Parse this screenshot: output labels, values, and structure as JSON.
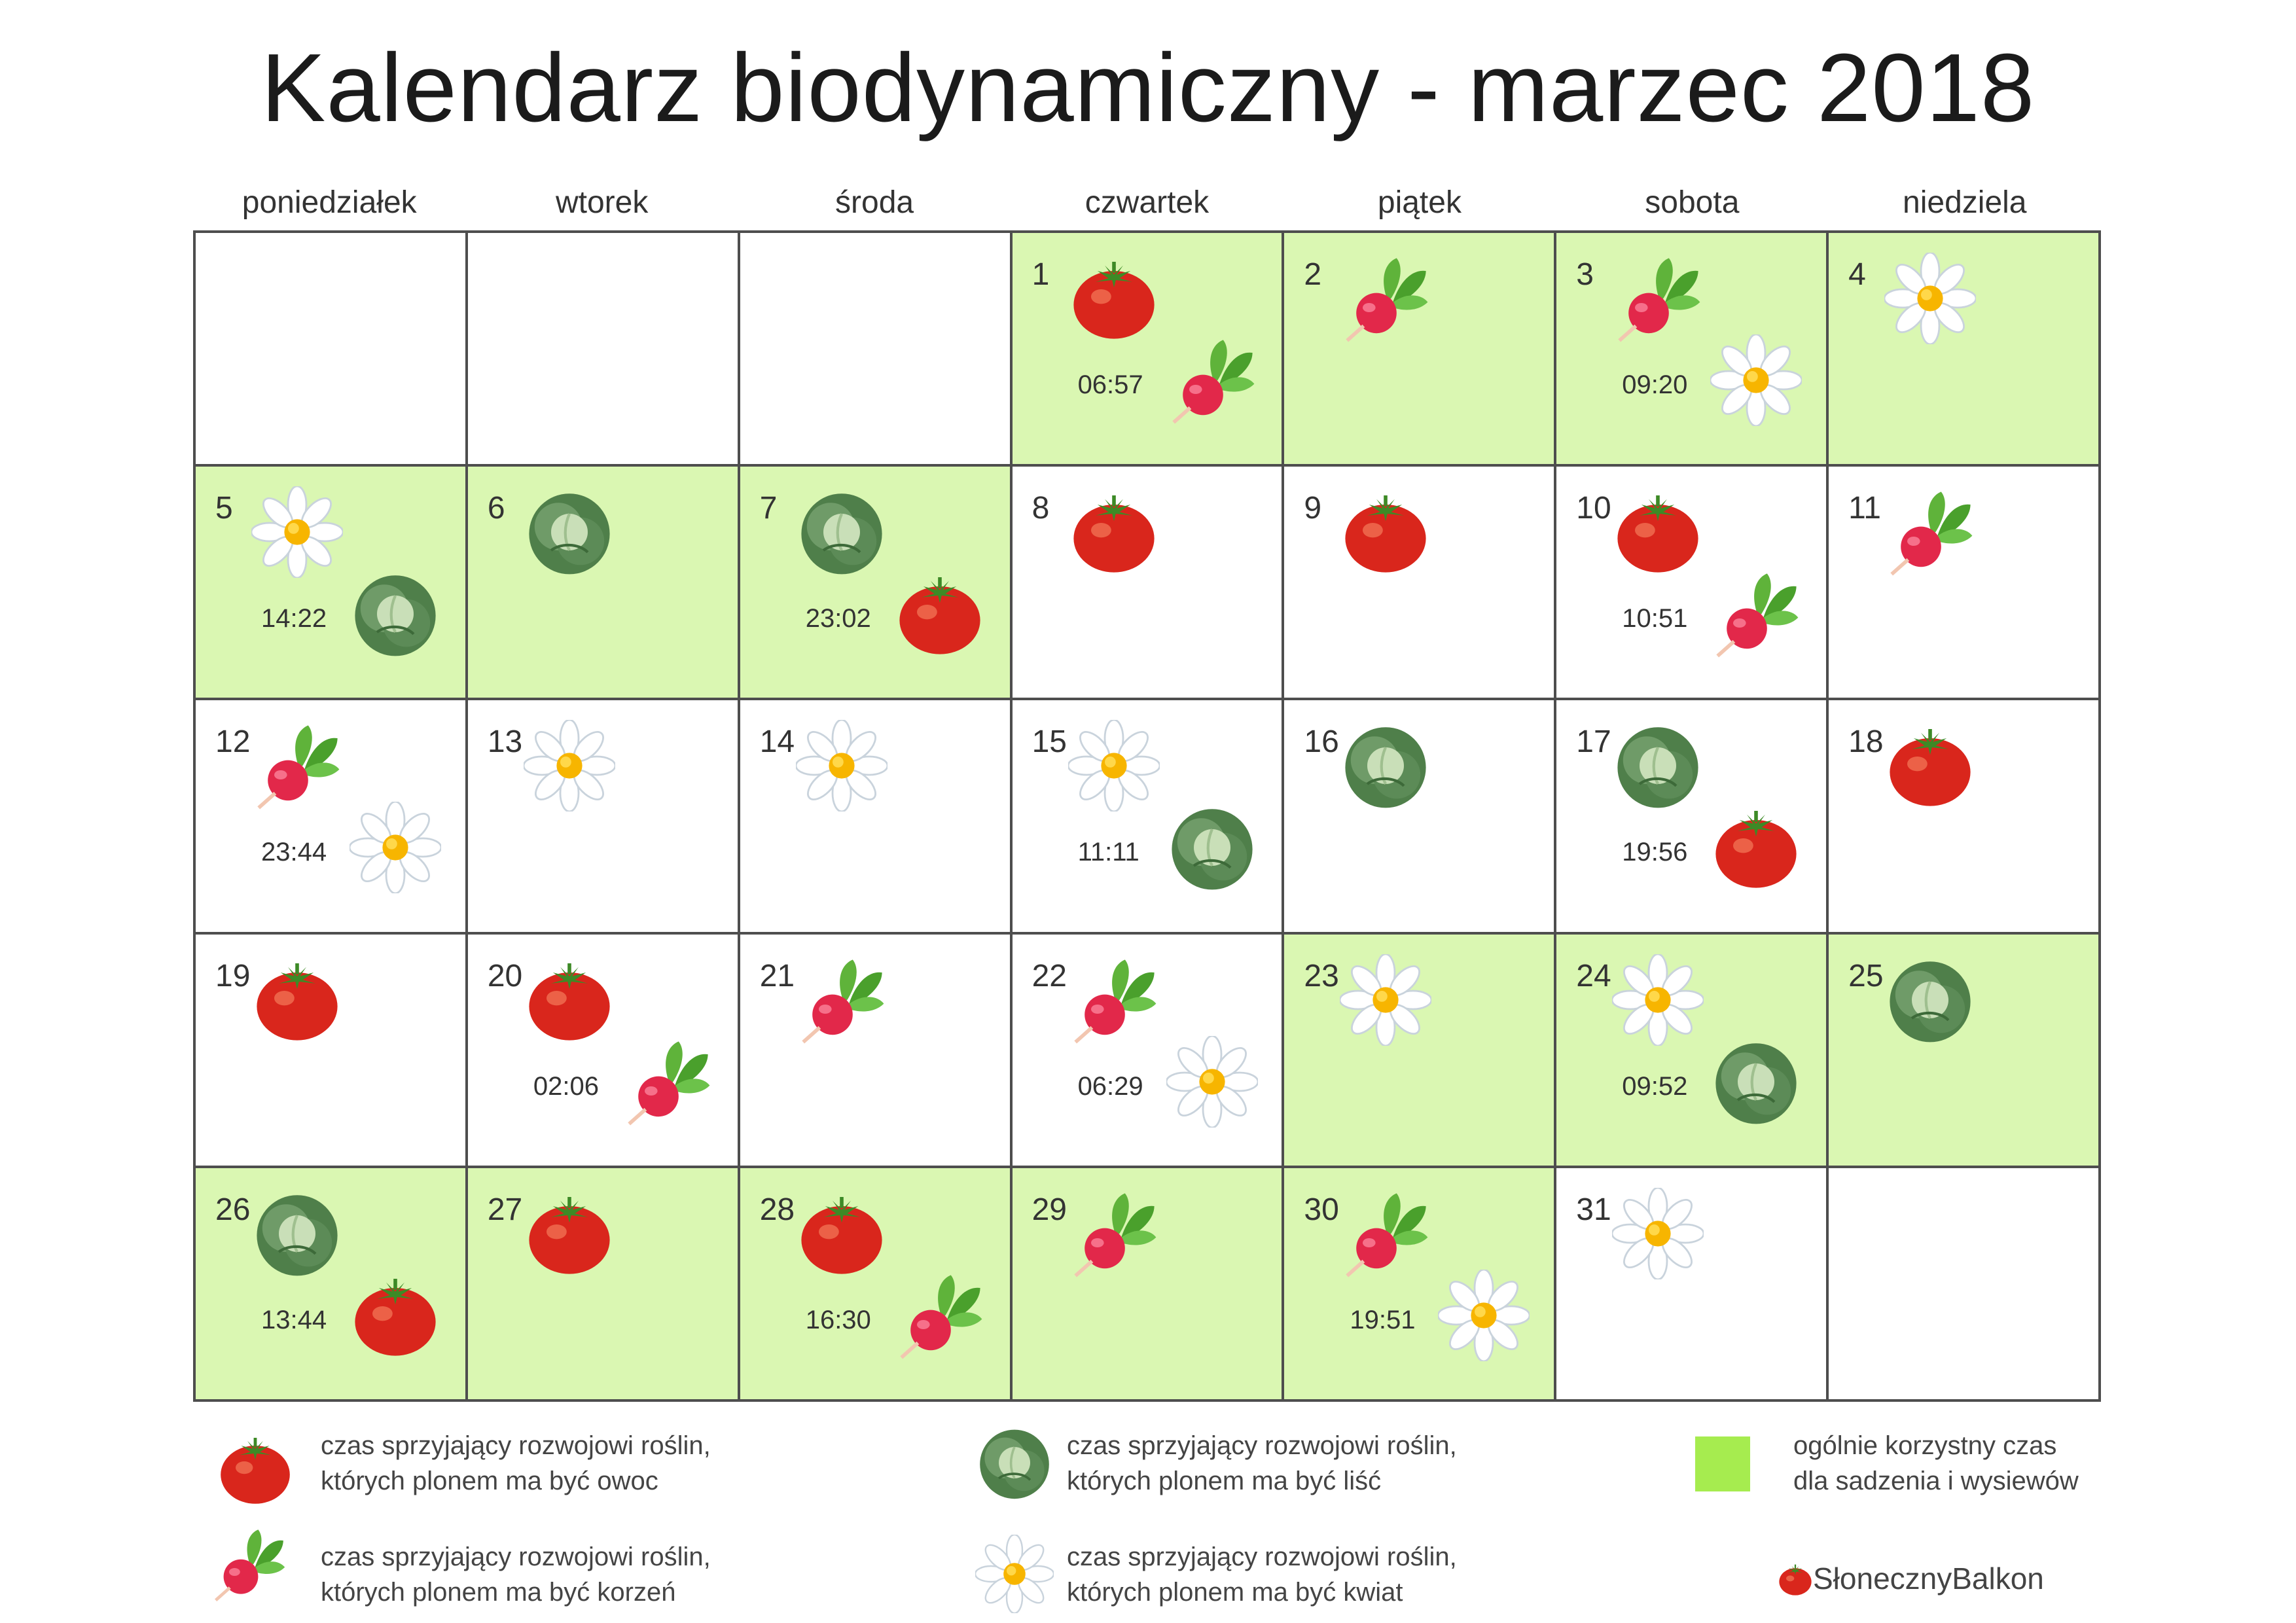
{
  "title": "Kalendarz biodynamiczny - marzec 2018",
  "weekdays": [
    "poniedziałek",
    "wtorek",
    "środa",
    "czwartek",
    "piątek",
    "sobota",
    "niedziela"
  ],
  "colors": {
    "favorable": "#daf7b2",
    "legend_swatch": "#a6ec4f",
    "border": "#4e4e4e"
  },
  "cells": [
    {
      "day": "",
      "green": false,
      "icons": []
    },
    {
      "day": "",
      "green": false,
      "icons": []
    },
    {
      "day": "",
      "green": false,
      "icons": []
    },
    {
      "day": "1",
      "green": true,
      "icons": [
        "tomato-icon",
        "radish-icon"
      ],
      "time": "06:57"
    },
    {
      "day": "2",
      "green": true,
      "icons": [
        "radish-icon"
      ]
    },
    {
      "day": "3",
      "green": true,
      "icons": [
        "radish-icon",
        "daisy-icon"
      ],
      "time": "09:20"
    },
    {
      "day": "4",
      "green": true,
      "icons": [
        "daisy-icon"
      ]
    },
    {
      "day": "5",
      "green": true,
      "icons": [
        "daisy-icon",
        "cabbage-icon"
      ],
      "time": "14:22"
    },
    {
      "day": "6",
      "green": true,
      "icons": [
        "cabbage-icon"
      ]
    },
    {
      "day": "7",
      "green": true,
      "icons": [
        "cabbage-icon",
        "tomato-icon"
      ],
      "time": "23:02"
    },
    {
      "day": "8",
      "green": false,
      "icons": [
        "tomato-icon"
      ]
    },
    {
      "day": "9",
      "green": false,
      "icons": [
        "tomato-icon"
      ]
    },
    {
      "day": "10",
      "green": false,
      "icons": [
        "tomato-icon",
        "radish-icon"
      ],
      "time": "10:51"
    },
    {
      "day": "11",
      "green": false,
      "icons": [
        "radish-icon"
      ]
    },
    {
      "day": "12",
      "green": false,
      "icons": [
        "radish-icon",
        "daisy-icon"
      ],
      "time": "23:44"
    },
    {
      "day": "13",
      "green": false,
      "icons": [
        "daisy-icon"
      ]
    },
    {
      "day": "14",
      "green": false,
      "icons": [
        "daisy-icon"
      ]
    },
    {
      "day": "15",
      "green": false,
      "icons": [
        "daisy-icon",
        "cabbage-icon"
      ],
      "time": "11:11"
    },
    {
      "day": "16",
      "green": false,
      "icons": [
        "cabbage-icon"
      ]
    },
    {
      "day": "17",
      "green": false,
      "icons": [
        "cabbage-icon",
        "tomato-icon"
      ],
      "time": "19:56"
    },
    {
      "day": "18",
      "green": false,
      "icons": [
        "tomato-icon"
      ]
    },
    {
      "day": "19",
      "green": false,
      "icons": [
        "tomato-icon"
      ]
    },
    {
      "day": "20",
      "green": false,
      "icons": [
        "tomato-icon",
        "radish-icon"
      ],
      "time": "02:06"
    },
    {
      "day": "21",
      "green": false,
      "icons": [
        "radish-icon"
      ]
    },
    {
      "day": "22",
      "green": false,
      "icons": [
        "radish-icon",
        "daisy-icon"
      ],
      "time": "06:29"
    },
    {
      "day": "23",
      "green": true,
      "icons": [
        "daisy-icon"
      ]
    },
    {
      "day": "24",
      "green": true,
      "icons": [
        "daisy-icon",
        "cabbage-icon"
      ],
      "time": "09:52"
    },
    {
      "day": "25",
      "green": true,
      "icons": [
        "cabbage-icon"
      ]
    },
    {
      "day": "26",
      "green": true,
      "icons": [
        "cabbage-icon",
        "tomato-icon"
      ],
      "time": "13:44"
    },
    {
      "day": "27",
      "green": true,
      "icons": [
        "tomato-icon"
      ]
    },
    {
      "day": "28",
      "green": true,
      "icons": [
        "tomato-icon",
        "radish-icon"
      ],
      "time": "16:30"
    },
    {
      "day": "29",
      "green": true,
      "icons": [
        "radish-icon"
      ]
    },
    {
      "day": "30",
      "green": true,
      "icons": [
        "radish-icon",
        "daisy-icon"
      ],
      "time": "19:51"
    },
    {
      "day": "31",
      "green": false,
      "icons": [
        "daisy-icon"
      ]
    },
    {
      "day": "",
      "green": false,
      "icons": []
    }
  ],
  "legend": {
    "fruit": {
      "icon": "tomato-icon",
      "line1": "czas sprzyjający rozwojowi roślin,",
      "line2": "których plonem ma być owoc"
    },
    "leaf": {
      "icon": "cabbage-icon",
      "line1": "czas sprzyjający rozwojowi roślin,",
      "line2": "których plonem ma być liść"
    },
    "general": {
      "line1": "ogólnie korzystny czas",
      "line2": "dla sadzenia i wysiewów"
    },
    "root": {
      "icon": "radish-icon",
      "line1": "czas sprzyjający rozwojowi roślin,",
      "line2": "których plonem ma być korzeń"
    },
    "flower": {
      "icon": "daisy-icon",
      "line1": "czas sprzyjający rozwojowi roślin,",
      "line2": "których plonem ma być kwiat"
    }
  },
  "brand": "SłonecznyBalkon"
}
